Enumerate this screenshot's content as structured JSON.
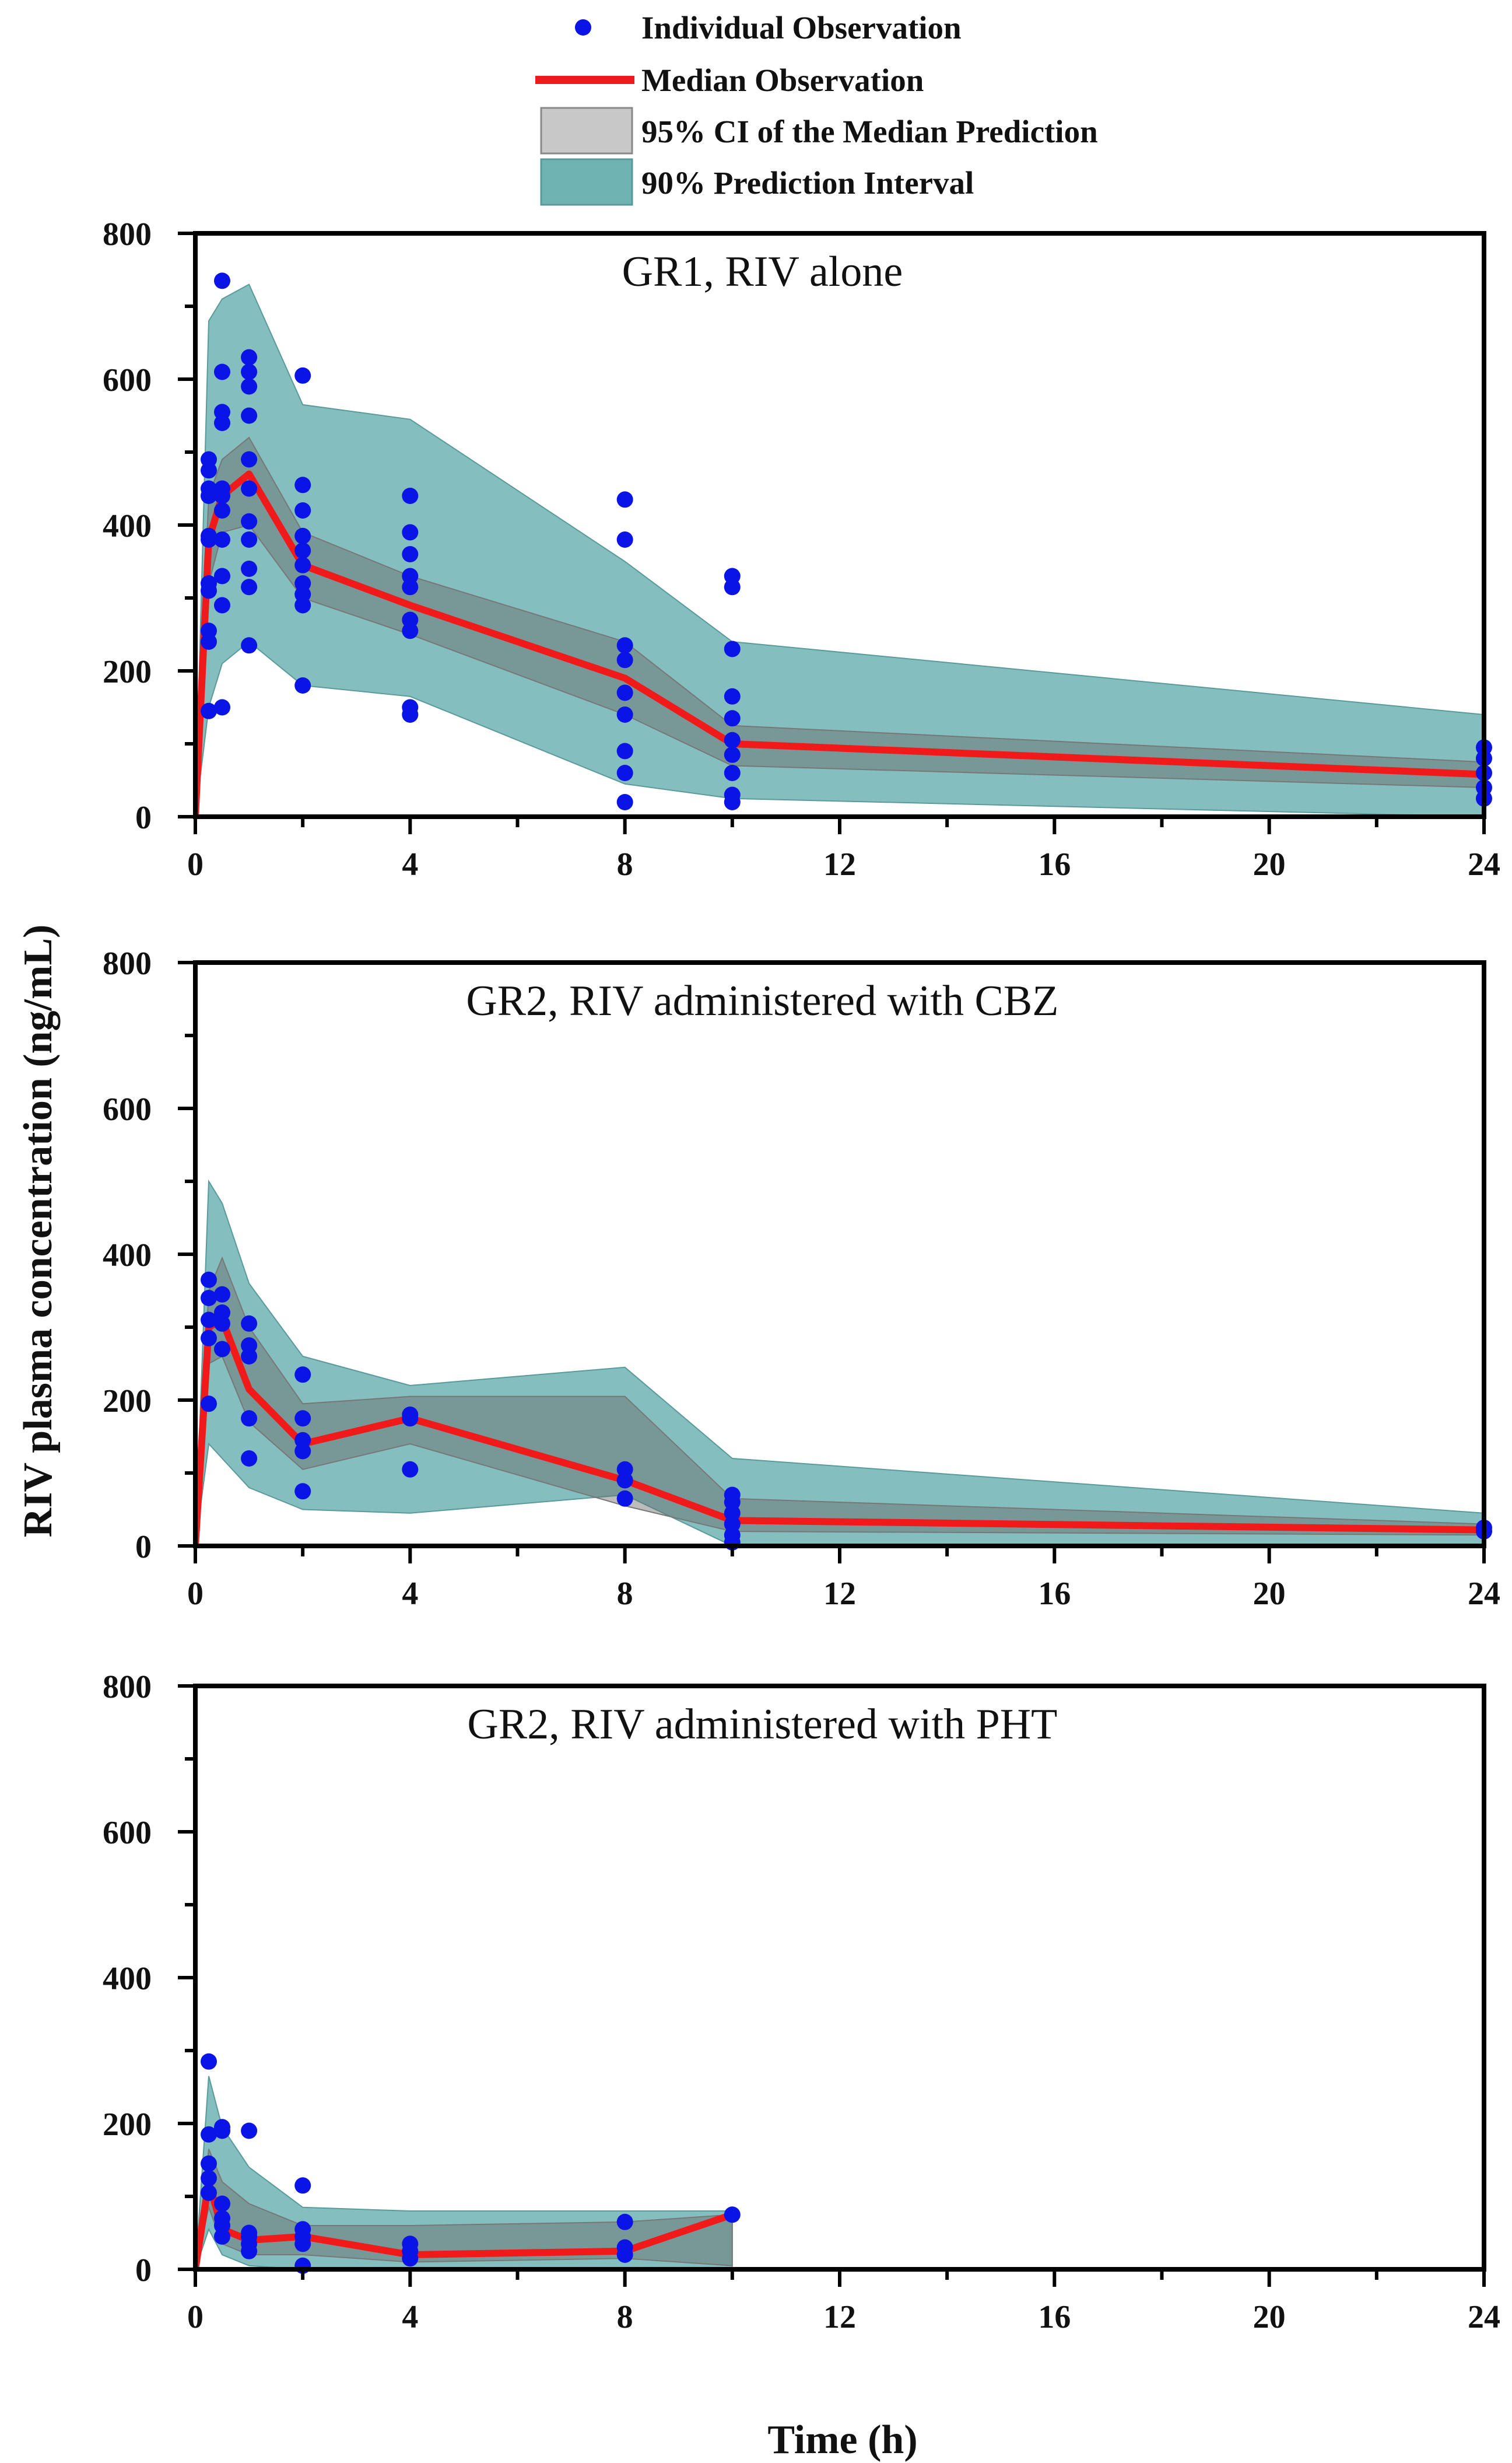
{
  "colors": {
    "observation": "#0a14e6",
    "median": "#f01a1a",
    "ci95": "#6b6b6b",
    "pi90": "#6fb3b3",
    "axis": "#000000"
  },
  "legend": [
    {
      "label": "Individual Observation",
      "symbol": "dot"
    },
    {
      "label": "Median Observation",
      "symbol": "line"
    },
    {
      "label": "95% CI of the Median Prediction",
      "symbol": "gray-box"
    },
    {
      "label": "90% Prediction Interval",
      "symbol": "teal-box"
    }
  ],
  "axes": {
    "ylabel": "RIV plasma concentration (ng/mL)",
    "xlabel": "Time (h)",
    "xlim": [
      0,
      24
    ],
    "ylim": [
      0,
      800
    ],
    "xticks": [
      0,
      4,
      8,
      12,
      16,
      20,
      24
    ],
    "yticks": [
      0,
      200,
      400,
      600,
      800
    ]
  },
  "chart_data": [
    {
      "type": "scatter",
      "title": "GR1, RIV alone",
      "xlabel": "Time (h)",
      "ylabel": "RIV plasma concentration (ng/mL)",
      "xlim": [
        0,
        24
      ],
      "ylim": [
        0,
        800
      ],
      "observations": [
        {
          "x": 0.25,
          "y": [
            145,
            240,
            255,
            310,
            320,
            380,
            385,
            440,
            450,
            475,
            490
          ]
        },
        {
          "x": 0.5,
          "y": [
            150,
            290,
            330,
            380,
            420,
            440,
            450,
            540,
            555,
            610,
            735
          ]
        },
        {
          "x": 1,
          "y": [
            235,
            315,
            340,
            380,
            405,
            450,
            490,
            550,
            590,
            610,
            630
          ]
        },
        {
          "x": 2,
          "y": [
            180,
            290,
            305,
            320,
            345,
            365,
            385,
            420,
            455,
            605
          ]
        },
        {
          "x": 4,
          "y": [
            140,
            150,
            255,
            270,
            315,
            330,
            360,
            390,
            440
          ]
        },
        {
          "x": 8,
          "y": [
            20,
            60,
            90,
            140,
            170,
            215,
            235,
            380,
            435
          ]
        },
        {
          "x": 10,
          "y": [
            20,
            30,
            60,
            85,
            105,
            135,
            165,
            230,
            315,
            330
          ]
        },
        {
          "x": 24,
          "y": [
            25,
            40,
            60,
            80,
            95
          ]
        }
      ],
      "median": {
        "x": [
          0,
          0.25,
          0.5,
          1,
          2,
          4,
          8,
          10,
          24
        ],
        "y": [
          0,
          380,
          440,
          470,
          345,
          290,
          190,
          100,
          58
        ]
      },
      "ci95": {
        "x": [
          0,
          0.25,
          0.5,
          1,
          2,
          4,
          8,
          10,
          24
        ],
        "lower": [
          0,
          320,
          390,
          400,
          300,
          250,
          140,
          70,
          40
        ],
        "upper": [
          0,
          440,
          490,
          520,
          390,
          330,
          240,
          125,
          75
        ]
      },
      "pi90": {
        "x": [
          0,
          0.25,
          0.5,
          1,
          2,
          4,
          8,
          10,
          24
        ],
        "lower": [
          0,
          150,
          210,
          240,
          180,
          165,
          45,
          25,
          0
        ],
        "upper": [
          0,
          680,
          710,
          730,
          565,
          545,
          350,
          240,
          140
        ]
      }
    },
    {
      "type": "scatter",
      "title": "GR2, RIV administered with CBZ",
      "xlabel": "Time (h)",
      "ylabel": "RIV plasma concentration (ng/mL)",
      "xlim": [
        0,
        24
      ],
      "ylim": [
        0,
        800
      ],
      "observations": [
        {
          "x": 0.25,
          "y": [
            195,
            285,
            310,
            340,
            365
          ]
        },
        {
          "x": 0.5,
          "y": [
            270,
            305,
            320,
            345
          ]
        },
        {
          "x": 1,
          "y": [
            120,
            175,
            260,
            275,
            305
          ]
        },
        {
          "x": 2,
          "y": [
            75,
            130,
            145,
            175,
            235
          ]
        },
        {
          "x": 4,
          "y": [
            105,
            175,
            180
          ]
        },
        {
          "x": 8,
          "y": [
            65,
            90,
            105
          ]
        },
        {
          "x": 10,
          "y": [
            5,
            15,
            30,
            45,
            60,
            70
          ]
        },
        {
          "x": 24,
          "y": [
            20,
            25
          ]
        }
      ],
      "median": {
        "x": [
          0,
          0.25,
          0.5,
          1,
          2,
          4,
          8,
          10,
          24
        ],
        "y": [
          0,
          300,
          310,
          215,
          140,
          175,
          90,
          35,
          22
        ]
      },
      "ci95": {
        "x": [
          0,
          0.25,
          0.5,
          1,
          2,
          4,
          8,
          10,
          24
        ],
        "lower": [
          0,
          250,
          260,
          170,
          105,
          140,
          55,
          20,
          15
        ],
        "upper": [
          0,
          350,
          395,
          300,
          195,
          205,
          205,
          65,
          30
        ]
      },
      "pi90": {
        "x": [
          0,
          0.25,
          0.5,
          1,
          2,
          4,
          8,
          10,
          24
        ],
        "lower": [
          0,
          140,
          120,
          80,
          50,
          45,
          70,
          0,
          0
        ],
        "upper": [
          0,
          500,
          470,
          360,
          260,
          220,
          245,
          120,
          45
        ]
      }
    },
    {
      "type": "scatter",
      "title": "GR2, RIV administered with PHT",
      "xlabel": "Time (h)",
      "ylabel": "RIV plasma concentration (ng/mL)",
      "xlim": [
        0,
        24
      ],
      "ylim": [
        0,
        800
      ],
      "observations": [
        {
          "x": 0.25,
          "y": [
            105,
            125,
            145,
            185,
            285
          ]
        },
        {
          "x": 0.5,
          "y": [
            45,
            60,
            70,
            90,
            190,
            195
          ]
        },
        {
          "x": 1,
          "y": [
            25,
            35,
            45,
            50,
            190
          ]
        },
        {
          "x": 2,
          "y": [
            5,
            35,
            45,
            55,
            115
          ]
        },
        {
          "x": 4,
          "y": [
            15,
            25,
            35
          ]
        },
        {
          "x": 8,
          "y": [
            20,
            30,
            65
          ]
        },
        {
          "x": 10,
          "y": [
            75
          ]
        }
      ],
      "median": {
        "x": [
          0,
          0.25,
          0.5,
          1,
          2,
          4,
          8,
          10
        ],
        "y": [
          0,
          120,
          55,
          40,
          45,
          20,
          25,
          75
        ]
      },
      "ci95": {
        "x": [
          0,
          0.25,
          0.5,
          1,
          2,
          4,
          8,
          10
        ],
        "lower": [
          0,
          85,
          35,
          20,
          20,
          10,
          15,
          5
        ],
        "upper": [
          0,
          165,
          120,
          90,
          60,
          60,
          65,
          75
        ]
      },
      "pi90": {
        "x": [
          0,
          0.25,
          0.5,
          1,
          2,
          4,
          8,
          10
        ],
        "lower": [
          0,
          55,
          20,
          5,
          0,
          0,
          0,
          0
        ],
        "upper": [
          0,
          265,
          195,
          140,
          85,
          80,
          80,
          80
        ]
      }
    }
  ]
}
